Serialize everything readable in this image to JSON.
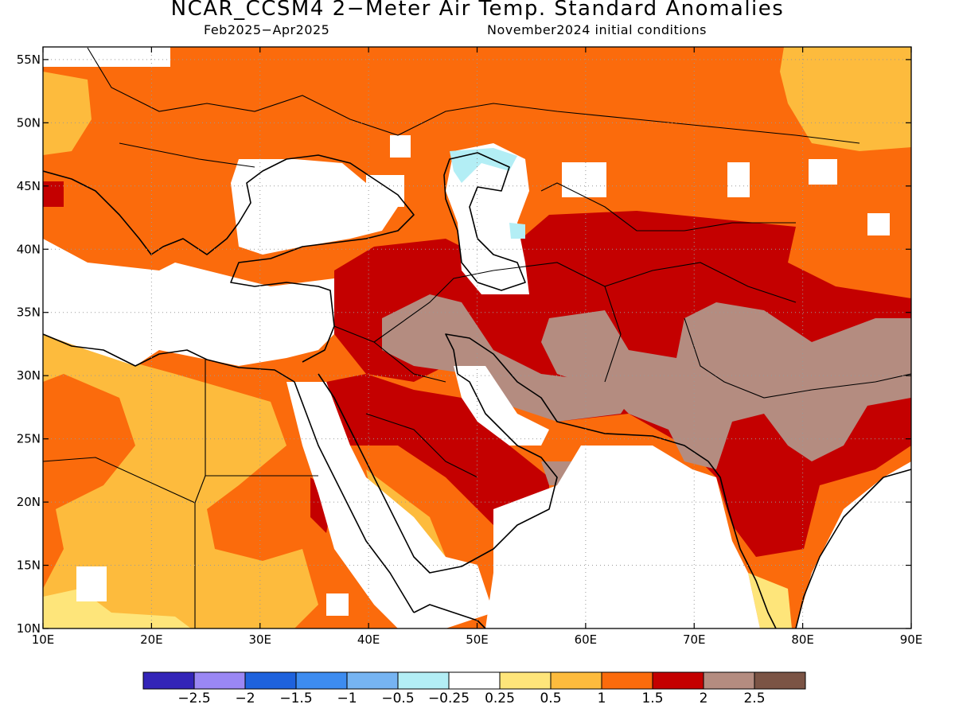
{
  "header": {
    "title": "NCAR_CCSM4 2−Meter Air Temp. Standard Anomalies",
    "period": "Feb2025−Apr2025",
    "init": "November2024 initial conditions"
  },
  "map": {
    "lon_range": [
      10,
      90
    ],
    "lat_range": [
      10,
      56
    ],
    "lon_ticks": [
      "10E",
      "20E",
      "30E",
      "40E",
      "50E",
      "60E",
      "70E",
      "80E",
      "90E"
    ],
    "lat_ticks": [
      "10N",
      "15N",
      "20N",
      "25N",
      "30N",
      "35N",
      "40N",
      "45N",
      "50N",
      "55N"
    ],
    "grid": "dotted",
    "region": "Europe, North Africa, Middle East, Central and South Asia",
    "anomaly_colors": {
      "near_zero": "#ffffff",
      "0.25_to_0.5": "#fee57a",
      "0.5_to_1": "#fdbb3d",
      "1_to_1.5": "#fb6b0c",
      "1.5_to_2": "#c40000",
      "2_to_2.5": "#b48c80",
      "-0.25_to_-0.5": "#b3eef5"
    }
  },
  "colorbar": {
    "colors": [
      "#3324b8",
      "#9a87f4",
      "#1e62dd",
      "#3d8cf0",
      "#76b4f2",
      "#b3eef5",
      "#ffffff",
      "#fee57a",
      "#fdbb3d",
      "#fb6b0c",
      "#c40000",
      "#b48c80",
      "#7b5445"
    ],
    "labels": [
      "−2.5",
      "−2",
      "−1.5",
      "−1",
      "−0.5",
      "−0.25",
      "0.25",
      "0.5",
      "1",
      "1.5",
      "2",
      "2.5"
    ]
  }
}
